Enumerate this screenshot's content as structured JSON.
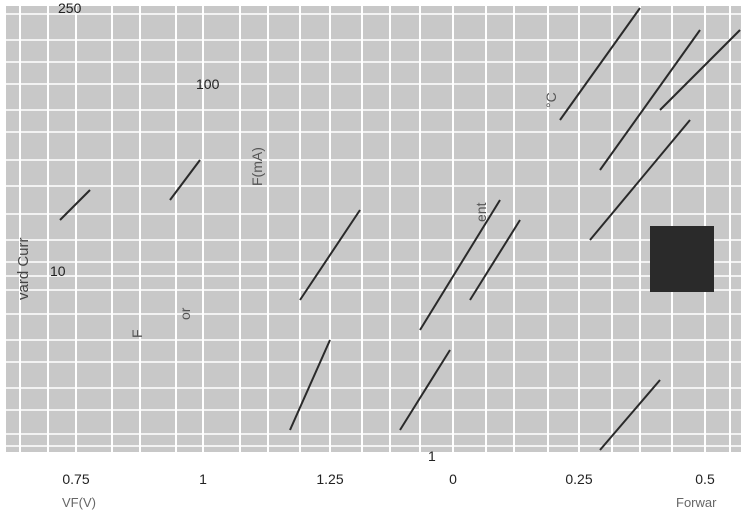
{
  "chart_data": {
    "type": "line",
    "x_tick_labels": [
      "0.75",
      "1",
      "1.25",
      "0",
      "0.25",
      "0.5"
    ],
    "y_tick_labels": [
      "250",
      "100",
      "10",
      "1"
    ],
    "ylabel": "vard Curr",
    "curve_annotations": [
      "F(mA)",
      "ent",
      "or",
      "F",
      "°C"
    ],
    "xlabel_fragments": [
      "Forwar",
      "VF(V)"
    ],
    "grid": true,
    "colors": {
      "panel": "#c8c8c8",
      "grid": "#ffffff",
      "curve": "#2a2a2a"
    }
  }
}
